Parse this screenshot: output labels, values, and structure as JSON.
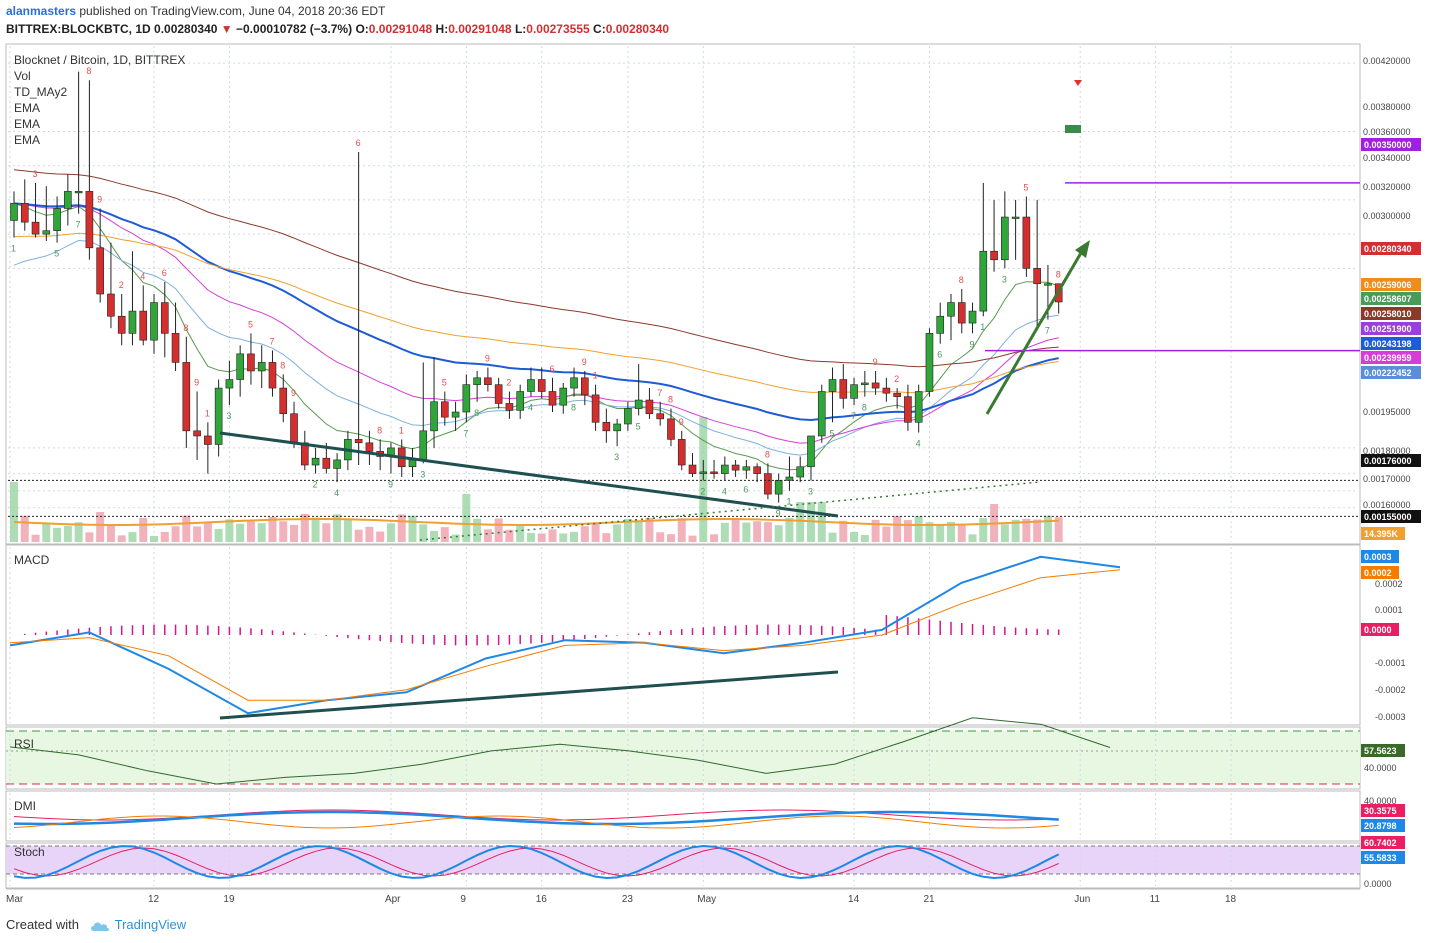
{
  "header": {
    "username": "alanmasters",
    "published_text": " published on TradingView.com, June 04, 2018 20:36 EDT",
    "symbol": "BITTREX:BLOCKBTC, 1D",
    "last": "0.00280340",
    "change": "−0.00010782 (−3.7%)",
    "o_label": "O:",
    "o": "0.00291048",
    "h_label": "H:",
    "h": "0.00291048",
    "l_label": "L:",
    "l": "0.00273555",
    "c_label": "C:",
    "c": "0.00280340"
  },
  "footer": {
    "created_with": "Created with",
    "brand": "TradingView"
  },
  "colors": {
    "up": "#2fa53a",
    "down": "#d32f2f",
    "ema_blue": "#1e5bd6",
    "ema_light": "#7fb0e0",
    "ema_magenta": "#d83cd8",
    "ema_orange": "#f0a030",
    "ema_brown": "#8b3a2a",
    "ema_green": "#5a9a50",
    "resistance": "#a020e0",
    "trend": "#1f4f4f",
    "arrow": "#3a7a30",
    "macd": "#1e88e5",
    "signal": "#f57c00",
    "hist": "#d0188c"
  },
  "chart_data": [
    {
      "type": "candlestick",
      "title": "Blocknet / Bitcoin, 1D, BITTREX",
      "indicators": [
        "Vol",
        "TD_MAy2",
        "EMA",
        "EMA",
        "EMA"
      ],
      "x_ticks": [
        "Mar",
        "12",
        "19",
        "Apr",
        "9",
        "16",
        "23",
        "May",
        "14",
        "21",
        "Jun",
        "11",
        "18"
      ],
      "y_ticks": [
        "0.00420000",
        "0.00380000",
        "0.00360000",
        "0.00340000",
        "0.00320000",
        "0.00300000",
        "0.00195000",
        "0.00180000",
        "0.00170000",
        "0.00160000"
      ],
      "ylim": [
        0.0014,
        0.0043
      ],
      "ohlc": [
        [
          0.00328,
          0.00345,
          0.00318,
          0.00338
        ],
        [
          0.00338,
          0.00352,
          0.00322,
          0.00327
        ],
        [
          0.00327,
          0.0035,
          0.00318,
          0.0032
        ],
        [
          0.0032,
          0.00348,
          0.00316,
          0.00322
        ],
        [
          0.00322,
          0.00342,
          0.00315,
          0.00335
        ],
        [
          0.00335,
          0.00355,
          0.00325,
          0.00345
        ],
        [
          0.00345,
          0.00415,
          0.00332,
          0.00345
        ],
        [
          0.00345,
          0.0041,
          0.00305,
          0.00312
        ],
        [
          0.00312,
          0.00335,
          0.0028,
          0.00285
        ],
        [
          0.00285,
          0.00315,
          0.00265,
          0.00272
        ],
        [
          0.00272,
          0.00285,
          0.00255,
          0.00262
        ],
        [
          0.00262,
          0.0031,
          0.00255,
          0.00275
        ],
        [
          0.00275,
          0.0029,
          0.00255,
          0.00258
        ],
        [
          0.00258,
          0.00285,
          0.0025,
          0.0028
        ],
        [
          0.0028,
          0.00292,
          0.00248,
          0.00262
        ],
        [
          0.00262,
          0.0028,
          0.0024,
          0.00245
        ],
        [
          0.00245,
          0.0026,
          0.00195,
          0.00205
        ],
        [
          0.00205,
          0.00228,
          0.00188,
          0.00202
        ],
        [
          0.00202,
          0.0021,
          0.0018,
          0.00197
        ],
        [
          0.00197,
          0.00235,
          0.0019,
          0.0023
        ],
        [
          0.0023,
          0.00246,
          0.0022,
          0.00235
        ],
        [
          0.00235,
          0.00255,
          0.00225,
          0.0025
        ],
        [
          0.0025,
          0.00262,
          0.00232,
          0.0024
        ],
        [
          0.0024,
          0.00255,
          0.0023,
          0.00245
        ],
        [
          0.00245,
          0.00252,
          0.00225,
          0.0023
        ],
        [
          0.0023,
          0.00238,
          0.0021,
          0.00215
        ],
        [
          0.00215,
          0.00222,
          0.00195,
          0.00198
        ],
        [
          0.00198,
          0.00205,
          0.00182,
          0.00185
        ],
        [
          0.00185,
          0.00195,
          0.0018,
          0.00189
        ],
        [
          0.00189,
          0.00198,
          0.0018,
          0.00183
        ],
        [
          0.00183,
          0.00192,
          0.00175,
          0.00188
        ],
        [
          0.00188,
          0.00205,
          0.00182,
          0.002
        ],
        [
          0.002,
          0.00368,
          0.00185,
          0.00198
        ],
        [
          0.00198,
          0.00205,
          0.00185,
          0.00193
        ],
        [
          0.00193,
          0.002,
          0.00182,
          0.0019
        ],
        [
          0.0019,
          0.00198,
          0.0018,
          0.00195
        ],
        [
          0.00195,
          0.002,
          0.00178,
          0.00184
        ],
        [
          0.00184,
          0.00195,
          0.00178,
          0.00188
        ],
        [
          0.00188,
          0.00245,
          0.00186,
          0.00205
        ],
        [
          0.00205,
          0.00248,
          0.00195,
          0.00222
        ],
        [
          0.00222,
          0.00228,
          0.00208,
          0.00213
        ],
        [
          0.00213,
          0.00222,
          0.00205,
          0.00216
        ],
        [
          0.00216,
          0.00238,
          0.0021,
          0.00232
        ],
        [
          0.00232,
          0.0024,
          0.00222,
          0.00236
        ],
        [
          0.00236,
          0.00242,
          0.00228,
          0.00232
        ],
        [
          0.00232,
          0.00236,
          0.00218,
          0.00221
        ],
        [
          0.00221,
          0.00228,
          0.00212,
          0.00217
        ],
        [
          0.00217,
          0.00232,
          0.00212,
          0.00228
        ],
        [
          0.00228,
          0.00242,
          0.00225,
          0.00235
        ],
        [
          0.00235,
          0.00242,
          0.00224,
          0.00228
        ],
        [
          0.00228,
          0.00236,
          0.00216,
          0.0022
        ],
        [
          0.0022,
          0.00233,
          0.00215,
          0.0023
        ],
        [
          0.0023,
          0.00242,
          0.00225,
          0.00236
        ],
        [
          0.00236,
          0.0024,
          0.0022,
          0.00226
        ],
        [
          0.00226,
          0.00232,
          0.00205,
          0.0021
        ],
        [
          0.0021,
          0.00218,
          0.00198,
          0.00205
        ],
        [
          0.00205,
          0.00212,
          0.00196,
          0.00209
        ],
        [
          0.00209,
          0.00222,
          0.00205,
          0.00218
        ],
        [
          0.00218,
          0.00244,
          0.00214,
          0.00223
        ],
        [
          0.00223,
          0.0023,
          0.00212,
          0.00215
        ],
        [
          0.00215,
          0.00222,
          0.00208,
          0.00212
        ],
        [
          0.00212,
          0.00218,
          0.00196,
          0.002
        ],
        [
          0.002,
          0.00205,
          0.00182,
          0.00185
        ],
        [
          0.00185,
          0.00192,
          0.00178,
          0.0018
        ],
        [
          0.0018,
          0.00188,
          0.00176,
          0.00181
        ],
        [
          0.00181,
          0.00188,
          0.00177,
          0.0018
        ],
        [
          0.0018,
          0.0019,
          0.00176,
          0.00185
        ],
        [
          0.00185,
          0.00188,
          0.00178,
          0.00182
        ],
        [
          0.00182,
          0.00188,
          0.00177,
          0.00184
        ],
        [
          0.00184,
          0.00186,
          0.00175,
          0.0018
        ],
        [
          0.0018,
          0.00186,
          0.00165,
          0.00168
        ],
        [
          0.00168,
          0.0018,
          0.00163,
          0.00176
        ],
        [
          0.00176,
          0.0019,
          0.0017,
          0.00178
        ],
        [
          0.00178,
          0.0019,
          0.00175,
          0.00184
        ],
        [
          0.00184,
          0.002,
          0.00176,
          0.00202
        ],
        [
          0.00202,
          0.00232,
          0.00198,
          0.00228
        ],
        [
          0.00228,
          0.00242,
          0.0021,
          0.00235
        ],
        [
          0.00235,
          0.00244,
          0.00218,
          0.00224
        ],
        [
          0.00224,
          0.00236,
          0.0022,
          0.00232
        ],
        [
          0.00232,
          0.0024,
          0.00225,
          0.00233
        ],
        [
          0.00233,
          0.0024,
          0.00226,
          0.0023
        ],
        [
          0.0023,
          0.00236,
          0.00222,
          0.00227
        ],
        [
          0.00227,
          0.0023,
          0.00218,
          0.00225
        ],
        [
          0.00225,
          0.00232,
          0.00205,
          0.0021
        ],
        [
          0.0021,
          0.00232,
          0.00204,
          0.00228
        ],
        [
          0.00228,
          0.00265,
          0.00225,
          0.00262
        ],
        [
          0.00262,
          0.0028,
          0.00256,
          0.00272
        ],
        [
          0.00272,
          0.00285,
          0.00258,
          0.0028
        ],
        [
          0.0028,
          0.00288,
          0.00262,
          0.00268
        ],
        [
          0.00268,
          0.0028,
          0.00262,
          0.00275
        ],
        [
          0.00275,
          0.0035,
          0.00272,
          0.0031
        ],
        [
          0.0031,
          0.0034,
          0.00298,
          0.00305
        ],
        [
          0.00305,
          0.00345,
          0.003,
          0.0033
        ],
        [
          0.0033,
          0.0034,
          0.00305,
          0.0033
        ],
        [
          0.0033,
          0.00342,
          0.00295,
          0.003
        ],
        [
          0.003,
          0.0034,
          0.00265,
          0.00291
        ],
        [
          0.00291,
          0.00302,
          0.0027,
          0.00291
        ],
        [
          0.00291,
          0.00291,
          0.00273555,
          0.0028034
        ]
      ],
      "ema_lines": [
        {
          "color_key": "ema_blue",
          "values": [
            0.00335,
            0.00243198
          ]
        },
        {
          "color_key": "ema_magenta",
          "values": [
            0.0033,
            0.00239959
          ]
        },
        {
          "color_key": "ema_orange",
          "values": [
            0.0031,
            0.00258607
          ]
        },
        {
          "color_key": "ema_brown",
          "values": [
            0.00345,
            0.0025801
          ]
        }
      ],
      "price_badges": [
        {
          "label": "0.00350000",
          "color": "#a020e0"
        },
        {
          "label": "0.00280340",
          "color": "#d32f2f"
        },
        {
          "label": "0.00259006",
          "color": "#f08c1a"
        },
        {
          "label": "0.00258607",
          "color": "#4a9a5a"
        },
        {
          "label": "0.00258010",
          "color": "#8b3a2a"
        },
        {
          "label": "0.00251900",
          "color": "#9c3fd8"
        },
        {
          "label": "0.00243198",
          "color": "#1e5bd6"
        },
        {
          "label": "0.00239959",
          "color": "#d83cd8"
        },
        {
          "label": "0.00222452",
          "color": "#5a8ed6"
        },
        {
          "label": "0.00176000",
          "color": "#111111"
        },
        {
          "label": "0.00155000",
          "color": "#111111"
        },
        {
          "label": "14.395K",
          "color": "#f0a030"
        }
      ]
    },
    {
      "type": "line",
      "title": "MACD",
      "y_ticks": [
        "0.0002",
        "0.0001",
        "-0.0001",
        "-0.0002",
        "-0.0003"
      ],
      "series": [
        {
          "name": "",
          "color_key": "macd",
          "values": [
            -4e-05,
            1e-05,
            -0.00013,
            -0.0003,
            -0.00025,
            -0.00022,
            -9e-05,
            -2e-05,
            -3e-05,
            -7e-05,
            -3e-05,
            2e-05,
            0.0002,
            0.0003,
            0.00026
          ]
        },
        {
          "name": "",
          "color_key": "signal",
          "values": [
            -3e-05,
            -1e-05,
            -8e-05,
            -0.00025,
            -0.00025,
            -0.00021,
            -0.00012,
            -4e-05,
            -3e-05,
            -6e-05,
            -4e-05,
            0.0,
            0.00012,
            0.00022,
            0.00025
          ]
        }
      ],
      "badges": [
        {
          "label": "0.0003",
          "color": "#1e88e5"
        },
        {
          "label": "0.0002",
          "color": "#f57c00"
        },
        {
          "label": "0.0000",
          "color": "#e91e63"
        }
      ]
    },
    {
      "type": "line",
      "title": "RSI",
      "y_ticks": [
        "40.0000"
      ],
      "values": [
        58,
        52,
        40,
        30,
        35,
        38,
        45,
        55,
        60,
        55,
        48,
        38,
        45,
        62,
        80,
        75,
        57.5623
      ],
      "badges": [
        {
          "label": "57.5623",
          "color": "#3a6a2a"
        }
      ]
    },
    {
      "type": "line",
      "title": "DMI",
      "y_ticks": [
        "40.0000"
      ],
      "badges": [
        {
          "label": "30.3575",
          "color": "#e91e63"
        },
        {
          "label": "20.8798",
          "color": "#1e88e5"
        }
      ]
    },
    {
      "type": "line",
      "title": "Stoch",
      "y_ticks": [
        "0.0000"
      ],
      "badges": [
        {
          "label": "60.7402",
          "color": "#e91e63"
        },
        {
          "label": "55.5833",
          "color": "#1e88e5"
        }
      ]
    }
  ]
}
